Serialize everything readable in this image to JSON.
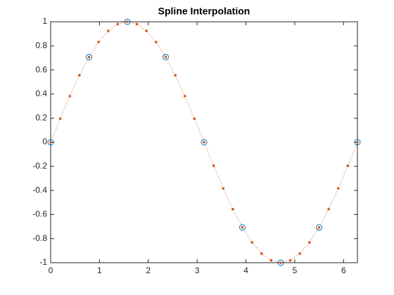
{
  "chart_data": {
    "type": "line",
    "title": "Spline Interpolation",
    "xlim": [
      0,
      6.2832
    ],
    "ylim": [
      -1,
      1
    ],
    "xticks": [
      0,
      1,
      2,
      3,
      4,
      5,
      6
    ],
    "yticks": [
      -1,
      -0.8,
      -0.6,
      -0.4,
      -0.2,
      0,
      0.2,
      0.4,
      0.6,
      0.8,
      1
    ],
    "box": true,
    "series": [
      {
        "color": "#d95319",
        "marker": "dot",
        "line": "dotted",
        "x": [
          0,
          0.1963,
          0.3927,
          0.589,
          0.7854,
          0.9817,
          1.1781,
          1.3744,
          1.5708,
          1.7671,
          1.9635,
          2.1598,
          2.3562,
          2.5525,
          2.7489,
          2.9452,
          3.1416,
          3.3379,
          3.5343,
          3.7306,
          3.927,
          4.1233,
          4.3197,
          4.516,
          4.7124,
          4.9087,
          5.1051,
          5.3014,
          5.4978,
          5.6941,
          5.8905,
          6.0868,
          6.2832
        ],
        "values": [
          0,
          0.1951,
          0.3827,
          0.5556,
          0.7071,
          0.8315,
          0.9239,
          0.9808,
          1,
          0.9808,
          0.9239,
          0.8315,
          0.7071,
          0.5556,
          0.3827,
          0.1951,
          0,
          -0.1951,
          -0.3827,
          -0.5556,
          -0.7071,
          -0.8315,
          -0.9239,
          -0.9808,
          -1,
          -0.9808,
          -0.9239,
          -0.8315,
          -0.7071,
          -0.5556,
          -0.3827,
          -0.1951,
          0
        ]
      },
      {
        "color": "#0072bd",
        "marker": "circle",
        "line": "none",
        "x": [
          0,
          0.7854,
          1.5708,
          2.3562,
          3.1416,
          3.927,
          4.7124,
          5.4978,
          6.2832
        ],
        "values": [
          0,
          0.7071,
          1,
          0.7071,
          0,
          -0.7071,
          -1,
          -0.7071,
          0
        ]
      }
    ]
  }
}
